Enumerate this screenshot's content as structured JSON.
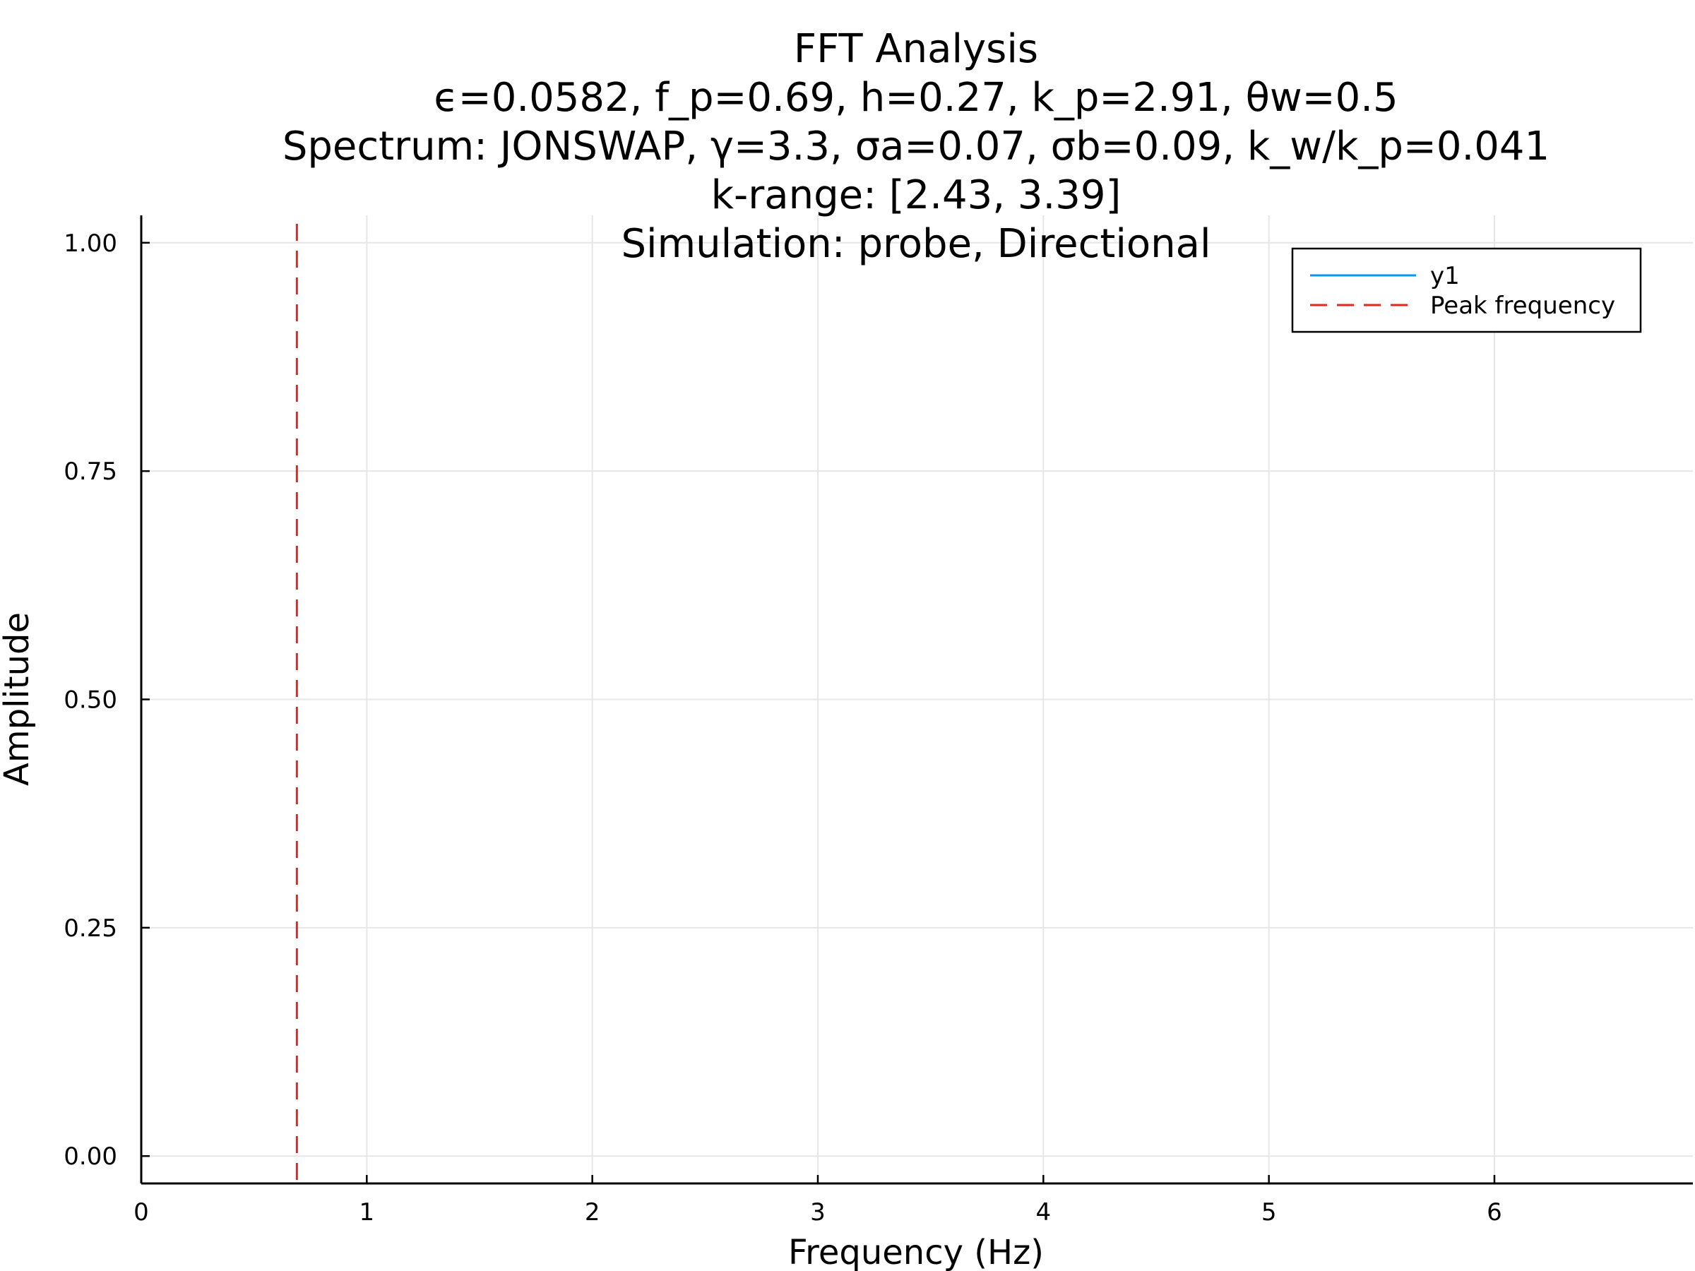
{
  "chart_data": {
    "type": "line",
    "title_lines": [
      "FFT Analysis",
      "ϵ=0.0582, f_p=0.69, h=0.27, k_p=2.91, θw=0.5",
      "Spectrum: JONSWAP, γ=3.3, σa=0.07, σb=0.09, k_w/k_p=0.041",
      "k-range: [2.43, 3.39]",
      "Simulation: probe, Directional"
    ],
    "xlabel": "Frequency (Hz)",
    "ylabel": "Amplitude",
    "xlim": [
      0,
      6.88
    ],
    "ylim": [
      -0.03,
      1.03
    ],
    "x_ticks": [
      0,
      1,
      2,
      3,
      4,
      5,
      6
    ],
    "x_tick_labels": [
      "0",
      "1",
      "2",
      "3",
      "4",
      "5",
      "6"
    ],
    "y_ticks": [
      0.0,
      0.25,
      0.5,
      0.75,
      1.0
    ],
    "y_tick_labels": [
      "0.00",
      "0.25",
      "0.50",
      "0.75",
      "1.00"
    ],
    "grid": true,
    "legend_position": "top-right",
    "series": [
      {
        "name": "y1",
        "color": "#009AFA",
        "style": "solid",
        "x": [],
        "y": []
      }
    ],
    "vlines": [
      {
        "name": "Peak frequency",
        "x": 0.69,
        "color": "#E6261A",
        "style": "dashed"
      }
    ]
  }
}
